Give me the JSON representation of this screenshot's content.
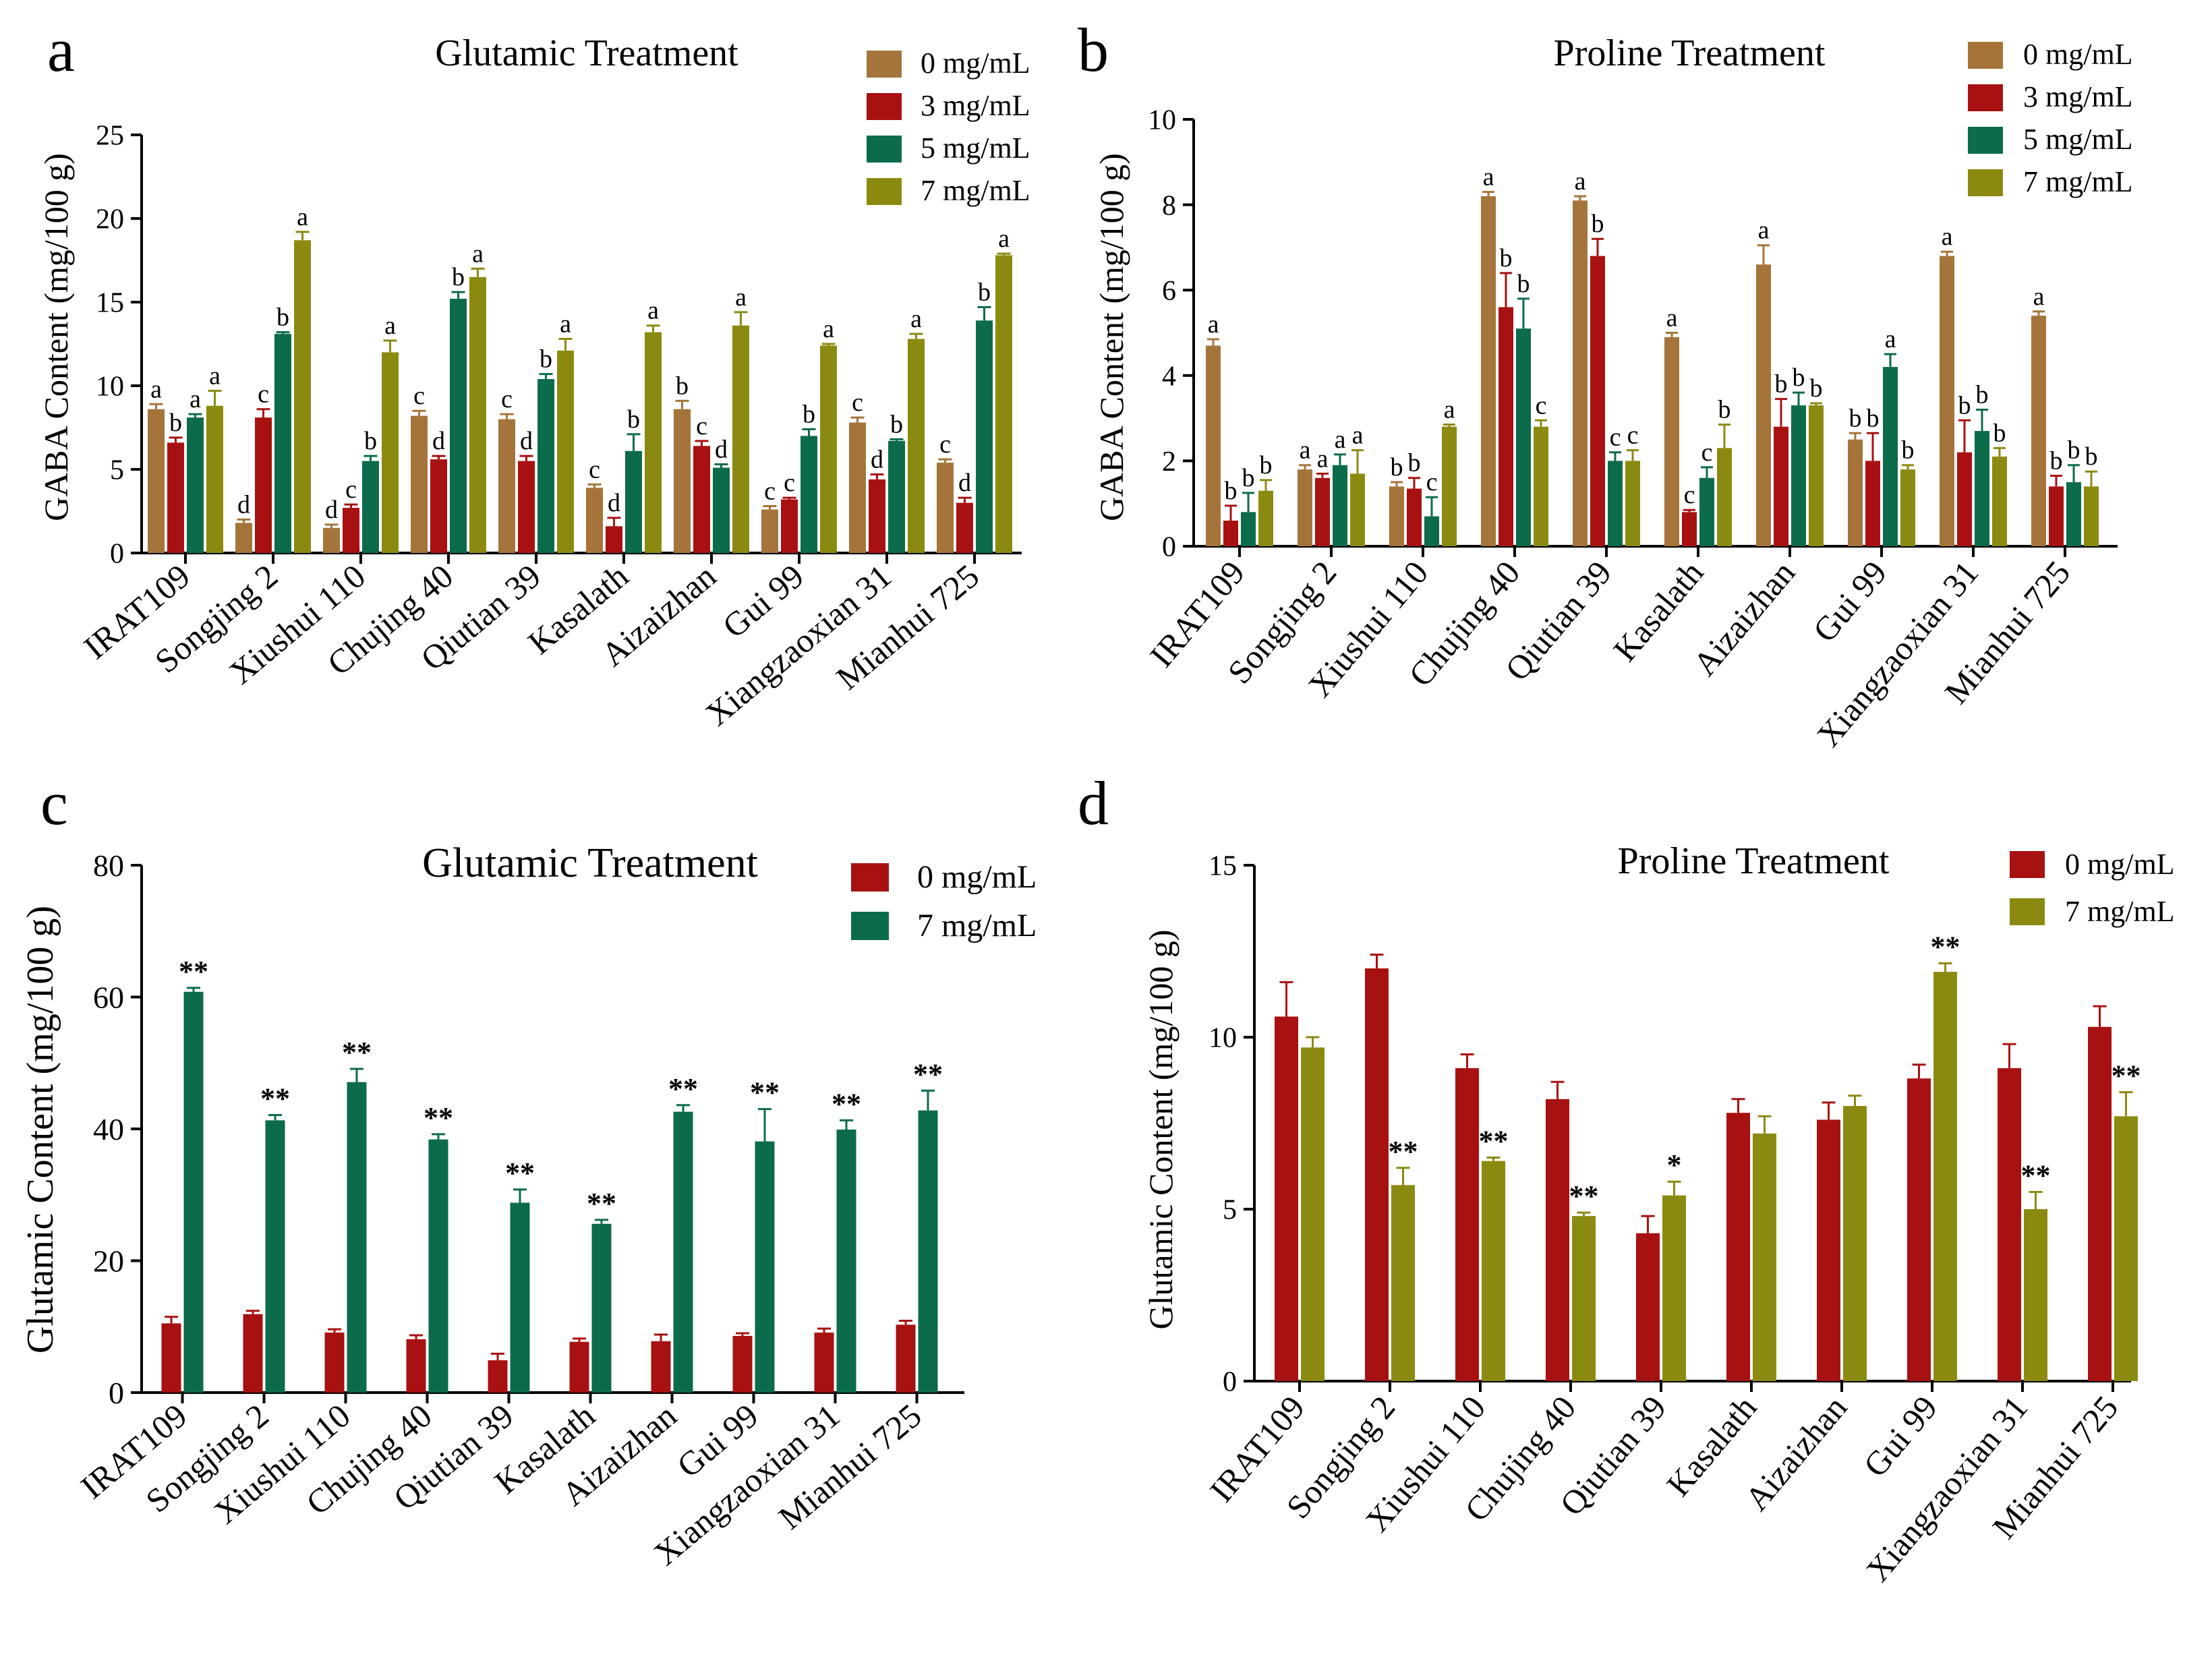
{
  "colors": {
    "brown": "#A5743A",
    "red": "#A81111",
    "green": "#0B6B4B",
    "olive": "#8B8A10"
  },
  "chart_data": [
    {
      "panel": "a",
      "type": "bar",
      "title": "Glutamic Treatment",
      "ylabel": "GABA Content (mg/100 g)",
      "xlabel": "",
      "ylim": [
        0,
        25
      ],
      "yticks": [
        "0",
        "5",
        "10",
        "15",
        "20",
        "25"
      ],
      "legend_position": "top-right",
      "categories": [
        "IRAT109",
        "Songjing 2",
        "Xiushui 110",
        "Chujing 40",
        "Qiutian 39",
        "Kasalath",
        "Aizaizhan",
        "Gui 99",
        "Xiangzaoxian 31",
        "Mianhui 725"
      ],
      "series": [
        {
          "name": "0 mg/mL",
          "color": "brown",
          "values": [
            8.6,
            1.8,
            1.5,
            8.2,
            8.0,
            3.9,
            8.6,
            2.6,
            7.8,
            5.4
          ],
          "errors": [
            0.3,
            0.2,
            0.2,
            0.3,
            0.3,
            0.2,
            0.5,
            0.2,
            0.3,
            0.2
          ],
          "letters": [
            "a",
            "d",
            "d",
            "c",
            "c",
            "c",
            "b",
            "c",
            "c",
            "c"
          ]
        },
        {
          "name": "3 mg/mL",
          "color": "red",
          "values": [
            6.6,
            8.1,
            2.7,
            5.6,
            5.5,
            1.6,
            6.4,
            3.2,
            4.4,
            3.0
          ],
          "errors": [
            0.3,
            0.5,
            0.2,
            0.2,
            0.3,
            0.5,
            0.3,
            0.1,
            0.3,
            0.3
          ],
          "letters": [
            "b",
            "c",
            "c",
            "d",
            "d",
            "d",
            "c",
            "c",
            "d",
            "d"
          ]
        },
        {
          "name": "5 mg/mL",
          "color": "green",
          "values": [
            8.1,
            13.1,
            5.5,
            15.2,
            10.4,
            6.1,
            5.1,
            7.0,
            6.7,
            13.9
          ],
          "errors": [
            0.2,
            0.1,
            0.3,
            0.4,
            0.3,
            1.0,
            0.2,
            0.4,
            0.1,
            0.8
          ],
          "letters": [
            "a",
            "b",
            "b",
            "b",
            "b",
            "b",
            "d",
            "b",
            "b",
            "b"
          ]
        },
        {
          "name": "7 mg/mL",
          "color": "olive",
          "values": [
            8.8,
            18.7,
            12.0,
            16.5,
            12.1,
            13.2,
            13.6,
            12.4,
            12.8,
            17.8
          ],
          "errors": [
            0.9,
            0.5,
            0.7,
            0.5,
            0.7,
            0.4,
            0.8,
            0.1,
            0.3,
            0.1
          ],
          "letters": [
            "a",
            "a",
            "a",
            "a",
            "a",
            "a",
            "a",
            "a",
            "a",
            "a"
          ]
        }
      ]
    },
    {
      "panel": "b",
      "type": "bar",
      "title": "Proline Treatment",
      "ylabel": "GABA Content (mg/100 g)",
      "xlabel": "",
      "ylim": [
        0,
        10
      ],
      "yticks": [
        "0",
        "2",
        "4",
        "6",
        "8",
        "10"
      ],
      "legend_position": "top-right",
      "categories": [
        "IRAT109",
        "Songjing 2",
        "Xiushui 110",
        "Chujing 40",
        "Qiutian 39",
        "Kasalath",
        "Aizaizhan",
        "Gui 99",
        "Xiangzaoxian 31",
        "Mianhui 725"
      ],
      "series": [
        {
          "name": "0 mg/mL",
          "color": "brown",
          "values": [
            4.7,
            1.8,
            1.4,
            8.2,
            8.1,
            4.9,
            6.6,
            2.5,
            6.8,
            5.4
          ],
          "errors": [
            0.15,
            0.1,
            0.1,
            0.1,
            0.1,
            0.1,
            0.45,
            0.15,
            0.1,
            0.1
          ],
          "letters": [
            "a",
            "a",
            "b",
            "a",
            "a",
            "a",
            "a",
            "b",
            "a",
            "a"
          ]
        },
        {
          "name": "3 mg/mL",
          "color": "red",
          "values": [
            0.6,
            1.6,
            1.35,
            5.6,
            6.8,
            0.8,
            2.8,
            2.0,
            2.2,
            1.4
          ],
          "errors": [
            0.35,
            0.1,
            0.25,
            0.8,
            0.4,
            0.05,
            0.65,
            0.65,
            0.75,
            0.25
          ],
          "letters": [
            "b",
            "a",
            "b",
            "b",
            "b",
            "c",
            "b",
            "b",
            "b",
            "b"
          ]
        },
        {
          "name": "5 mg/mL",
          "color": "green",
          "values": [
            0.8,
            1.9,
            0.7,
            5.1,
            2.0,
            1.6,
            3.3,
            4.2,
            2.7,
            1.5
          ],
          "errors": [
            0.45,
            0.25,
            0.45,
            0.7,
            0.2,
            0.25,
            0.3,
            0.3,
            0.5,
            0.4
          ],
          "letters": [
            "b",
            "a",
            "c",
            "b",
            "c",
            "c",
            "b",
            "a",
            "b",
            "b"
          ]
        },
        {
          "name": "7 mg/mL",
          "color": "olive",
          "values": [
            1.3,
            1.7,
            2.8,
            2.8,
            2.0,
            2.3,
            3.3,
            1.8,
            2.1,
            1.4
          ],
          "errors": [
            0.25,
            0.55,
            0.05,
            0.15,
            0.25,
            0.55,
            0.05,
            0.1,
            0.2,
            0.35
          ],
          "letters": [
            "b",
            "a",
            "a",
            "c",
            "c",
            "b",
            "b",
            "b",
            "b",
            "b"
          ]
        }
      ]
    },
    {
      "panel": "c",
      "type": "bar",
      "title": "Glutamic Treatment",
      "ylabel": "Glutamic Content (mg/100 g)",
      "xlabel": "",
      "ylim": [
        0,
        80
      ],
      "yticks": [
        "0",
        "20",
        "40",
        "60",
        "80"
      ],
      "legend_position": "top-right",
      "categories": [
        "IRAT109",
        "Songjing 2",
        "Xiushui 110",
        "Chujing 40",
        "Qiutian 39",
        "Kasalath",
        "Aizaizhan",
        "Gui 99",
        "Xiangzaoxian 31",
        "Mianhui 725"
      ],
      "series": [
        {
          "name": "0 mg/mL",
          "color": "red",
          "values": [
            10.5,
            11.9,
            9.1,
            8.1,
            4.9,
            7.7,
            7.8,
            8.6,
            9.1,
            10.3
          ],
          "errors": [
            1.0,
            0.5,
            0.5,
            0.6,
            1.0,
            0.5,
            1.0,
            0.4,
            0.6,
            0.6
          ],
          "letters": [
            "",
            "",
            "",
            "",
            "",
            "",
            "",
            "",
            "",
            ""
          ]
        },
        {
          "name": "7 mg/mL",
          "color": "green",
          "values": [
            60.8,
            41.3,
            47.1,
            38.4,
            28.8,
            25.6,
            42.6,
            38.1,
            39.9,
            42.8
          ],
          "errors": [
            0.6,
            0.8,
            2.0,
            0.8,
            2.0,
            0.6,
            1.0,
            4.9,
            1.4,
            3.0
          ],
          "letters": [
            "**",
            "**",
            "**",
            "**",
            "**",
            "**",
            "**",
            "**",
            "**",
            "**"
          ]
        }
      ]
    },
    {
      "panel": "d",
      "type": "bar",
      "title": "Proline Treatment",
      "ylabel": "Glutamic Content (mg/100 g)",
      "xlabel": "",
      "ylim": [
        0,
        15
      ],
      "yticks": [
        "0",
        "5",
        "10",
        "15"
      ],
      "legend_position": "top-right",
      "categories": [
        "IRAT109",
        "Songjing 2",
        "Xiushui 110",
        "Chujing 40",
        "Qiutian 39",
        "Kasalath",
        "Aizaizhan",
        "Gui 99",
        "Xiangzaoxian 31",
        "Mianhui 725"
      ],
      "series": [
        {
          "name": "0 mg/mL",
          "color": "red",
          "values": [
            10.6,
            12.0,
            9.1,
            8.2,
            4.3,
            7.8,
            7.6,
            8.8,
            9.1,
            10.3
          ],
          "errors": [
            1.0,
            0.4,
            0.4,
            0.5,
            0.5,
            0.4,
            0.5,
            0.4,
            0.7,
            0.6
          ],
          "letters": [
            "",
            "",
            "",
            "",
            "",
            "",
            "",
            "",
            "",
            ""
          ]
        },
        {
          "name": "7 mg/mL",
          "color": "olive",
          "values": [
            9.7,
            5.7,
            6.4,
            4.8,
            5.4,
            7.2,
            8.0,
            11.9,
            5.0,
            7.7
          ],
          "errors": [
            0.3,
            0.5,
            0.1,
            0.1,
            0.4,
            0.5,
            0.3,
            0.25,
            0.5,
            0.7
          ],
          "letters": [
            "",
            "**",
            "**",
            "**",
            "*",
            "",
            "",
            "**",
            "**",
            "**"
          ]
        }
      ]
    }
  ],
  "panel_labels": [
    "a",
    "b",
    "c",
    "d"
  ]
}
